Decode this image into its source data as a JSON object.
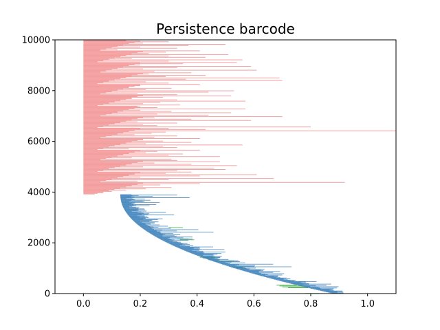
{
  "chart_data": {
    "type": "barcode",
    "title": "Persistence barcode",
    "xlabel": "",
    "ylabel": "",
    "xlim": [
      -0.1,
      1.1
    ],
    "ylim": [
      0,
      10000
    ],
    "xticks": [
      0.0,
      0.2,
      0.4,
      0.6,
      0.8,
      1.0
    ],
    "xtick_labels": [
      "0.0",
      "0.2",
      "0.4",
      "0.6",
      "0.8",
      "1.0"
    ],
    "yticks": [
      0,
      2000,
      4000,
      6000,
      8000,
      10000
    ],
    "ytick_labels": [
      "0",
      "2000",
      "4000",
      "6000",
      "8000",
      "10000"
    ],
    "grid": false,
    "legend": "none",
    "series": [
      {
        "dimension": 2,
        "color": "#2ca02c",
        "bars": [
          [
            0.87,
            0.92
          ],
          [
            0.78,
            0.83
          ],
          [
            0.72,
            0.79
          ],
          [
            0.7,
            0.8
          ],
          [
            0.69,
            0.77
          ],
          [
            0.68,
            0.75
          ],
          [
            0.54,
            0.57
          ],
          [
            0.52,
            0.56
          ],
          [
            0.48,
            0.53
          ],
          [
            0.44,
            0.48
          ],
          [
            0.42,
            0.47
          ],
          [
            0.41,
            0.46
          ],
          [
            0.34,
            0.39
          ],
          [
            0.33,
            0.37
          ],
          [
            0.3,
            0.35
          ]
        ],
        "y": [
          0,
          5,
          230,
          260,
          300,
          330,
          1020,
          1040,
          1280,
          1330,
          1400,
          1430,
          2120,
          2150,
          2600
        ]
      },
      {
        "dimension": 1,
        "color": "#377eb8",
        "y_start": 0,
        "y_end": 3900,
        "birth_start": 0.88,
        "birth_end": 0.13,
        "death_max_offset": [
          0.05,
          0.06,
          0.03,
          0.1,
          0.08,
          0.05,
          0.12,
          0.06,
          0.04,
          0.09,
          0.07,
          0.15,
          0.05,
          0.11,
          0.08,
          0.06,
          0.13,
          0.05,
          0.07,
          0.1,
          0.04,
          0.06,
          0.27,
          0.09,
          0.05,
          0.12,
          0.07,
          0.08,
          0.2,
          0.06,
          0.04,
          0.1,
          0.05,
          0.07,
          0.09,
          0.05,
          0.11,
          0.06,
          0.04,
          0.08
        ]
      },
      {
        "dimension": 0,
        "color": "#f08080",
        "y_start": 3900,
        "y_end": 10000,
        "birth": 0.0,
        "deaths": [
          0.04,
          0.07,
          0.1,
          0.15,
          0.22,
          0.31,
          0.21,
          0.27,
          0.41,
          0.92,
          0.19,
          0.3,
          0.67,
          0.2,
          0.41,
          0.61,
          0.29,
          0.38,
          0.33,
          0.5,
          0.46,
          0.21,
          0.54,
          0.38,
          0.25,
          0.48,
          0.33,
          0.31,
          0.17,
          0.48,
          0.3,
          0.35,
          0.22,
          0.26,
          0.41,
          0.16,
          0.33,
          0.28,
          0.56,
          0.22,
          0.38,
          0.28,
          0.21,
          0.41,
          0.25,
          0.33,
          0.18,
          0.24,
          0.29,
          1.1,
          0.43,
          0.3,
          0.8,
          0.26,
          0.21,
          0.33,
          0.19,
          0.59,
          0.38,
          0.25,
          0.7,
          0.44,
          0.26,
          0.52,
          0.31,
          0.2,
          0.57,
          0.26,
          0.19,
          0.34,
          0.21,
          0.27,
          0.57,
          0.33,
          0.17,
          0.28,
          0.52,
          0.33,
          0.19,
          0.44,
          0.53,
          0.22,
          0.31,
          0.16,
          0.2,
          0.41,
          0.3,
          0.22,
          0.7,
          0.36,
          0.69,
          0.29,
          0.43,
          0.23,
          0.38,
          0.25,
          0.61,
          0.21,
          0.33,
          0.59,
          0.2,
          0.35,
          0.54,
          0.3,
          0.56,
          0.17,
          0.43,
          0.3,
          0.51,
          0.23,
          0.29,
          0.41,
          0.12,
          0.33,
          0.2,
          0.37,
          0.5,
          0.21,
          0.3,
          0.15
        ]
      }
    ]
  }
}
